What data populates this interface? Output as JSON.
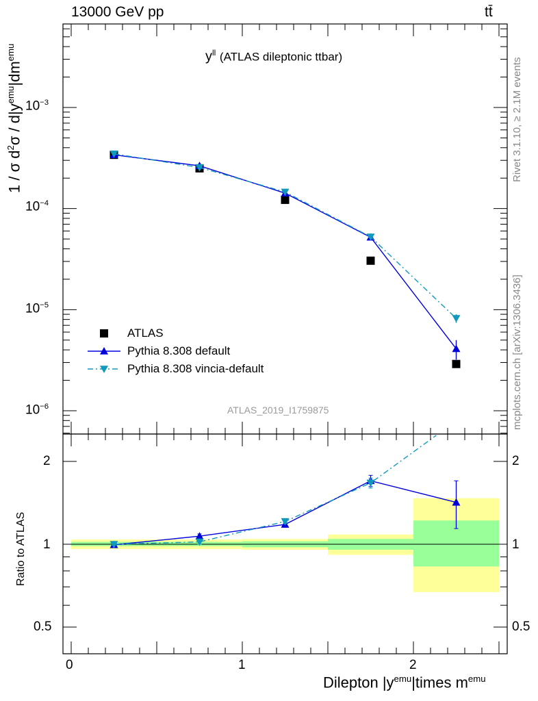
{
  "header": {
    "energy_label": "13000 GeV pp",
    "process_label": "tt̄"
  },
  "side_labels": {
    "rivet": "Rivet 3.1.10, ≥ 2.1M events",
    "mcplots": "mcplots.cern.ch [arXiv:1306.3436]"
  },
  "chart_data": [
    {
      "type": "scatter",
      "panel": "main",
      "title": "y^ll (ATLAS dileptonic ttbar)",
      "title_main": "y",
      "title_sup": "ll",
      "title_rest": "(ATLAS dileptonic ttbar)",
      "ylabel": "1 / σ  d²σ / d|y^emu|dm^emu",
      "ylabel_parts": {
        "a": "1 / σ  d",
        "b": "2",
        "c": "σ / d|y",
        "d": "emu",
        "e": "|dm",
        "f": "emu"
      },
      "y_scale": "log",
      "ylim": [
        6e-07,
        0.0048
      ],
      "xlim": [
        -0.1,
        2.55
      ],
      "x_bins": [
        [
          0,
          0.5
        ],
        [
          0.5,
          1.0
        ],
        [
          1.0,
          1.5
        ],
        [
          1.5,
          2.0
        ],
        [
          2.0,
          2.5
        ]
      ],
      "x": [
        0.25,
        0.75,
        1.25,
        1.75,
        2.25
      ],
      "y_tick_labels": [
        {
          "base": "10",
          "exp": "−3",
          "value": 0.001
        },
        {
          "base": "10",
          "exp": "−4",
          "value": 0.0001
        },
        {
          "base": "10",
          "exp": "−5",
          "value": 1e-05
        },
        {
          "base": "10",
          "exp": "−6",
          "value": 1e-06
        }
      ],
      "series": [
        {
          "name": "ATLAS",
          "color": "#000000",
          "marker": "square",
          "line": "none",
          "values": [
            0.00034,
            0.00025,
            0.000122,
            3.05e-05,
            2.9e-06
          ]
        },
        {
          "name": "Pythia 8.308 default",
          "color": "#0000dd",
          "marker": "triangle-up",
          "line": "solid",
          "values": [
            0.00034,
            0.000265,
            0.000142,
            5.2e-05,
            4.1e-06
          ],
          "errors": [
            0,
            0,
            0,
            0,
            9e-07
          ]
        },
        {
          "name": "Pythia 8.308 vincia-default",
          "color": "#1199bb",
          "marker": "triangle-down",
          "line": "dashdot",
          "values": [
            0.000348,
            0.000255,
            0.000146,
            5.25e-05,
            8.2e-06
          ],
          "errors": [
            0,
            0,
            0,
            0,
            8e-07
          ]
        }
      ],
      "legend_position": "bottom-left",
      "annotation": "ATLAS_2019_I1759875"
    },
    {
      "type": "scatter",
      "panel": "ratio",
      "xlabel": "Dilepton |y^emu|times m^emu",
      "xlabel_parts": {
        "a": "Dilepton |y",
        "b": "emu",
        "c": "|times m",
        "d": "emu"
      },
      "ylabel": "Ratio to ATLAS",
      "y_scale": "log",
      "ylim": [
        0.4,
        2.6
      ],
      "xlim": [
        -0.1,
        2.55
      ],
      "y_ticks": [
        "2",
        "1",
        "0.5"
      ],
      "x_ticks": [
        "0",
        "1",
        "2"
      ],
      "reference_line": 1,
      "uncertainty_bands": [
        {
          "x": [
            0,
            0.5
          ],
          "stat": [
            0.985,
            1.02
          ],
          "total": [
            0.96,
            1.04
          ]
        },
        {
          "x": [
            0.5,
            1.0
          ],
          "stat": [
            0.985,
            1.02
          ],
          "total": [
            0.96,
            1.04
          ]
        },
        {
          "x": [
            1.0,
            1.5
          ],
          "stat": [
            0.975,
            1.025
          ],
          "total": [
            0.955,
            1.045
          ]
        },
        {
          "x": [
            1.5,
            2.0
          ],
          "stat": [
            0.955,
            1.045
          ],
          "total": [
            0.915,
            1.085
          ]
        },
        {
          "x": [
            2.0,
            2.5
          ],
          "stat": [
            0.83,
            1.22
          ],
          "total": [
            0.67,
            1.47
          ]
        }
      ],
      "series": [
        {
          "name": "Pythia 8.308 default",
          "color": "#0000dd",
          "marker": "triangle-up",
          "line": "solid",
          "values": [
            0.995,
            1.07,
            1.18,
            1.7,
            1.42
          ],
          "errors": [
            0.01,
            0.02,
            0.02,
            0.08,
            0.28
          ]
        },
        {
          "name": "Pythia 8.308 vincia-default",
          "color": "#1199bb",
          "marker": "triangle-down",
          "line": "dashdot",
          "values": [
            1.0,
            1.02,
            1.21,
            1.67,
            2.85
          ],
          "errors": [
            0.01,
            0.02,
            0.02,
            0.07,
            0.25
          ]
        }
      ]
    }
  ],
  "colors": {
    "band_total": "#ffff99",
    "band_stat": "#99ff99",
    "annotation": "#999999"
  }
}
